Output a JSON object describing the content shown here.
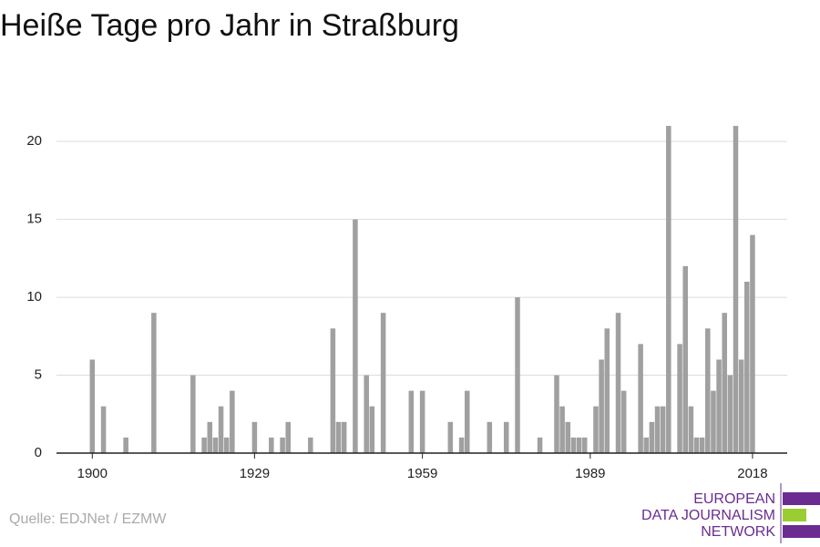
{
  "chart_data": {
    "type": "bar",
    "title": "Heiße Tage pro Jahr in Straßburg",
    "source": "Quelle: EDJNet / EZMW",
    "logo": [
      "EUROPEAN",
      "DATA JOURNALISM",
      "NETWORK"
    ],
    "color": "#a0a0a0",
    "x": [
      1900,
      1902,
      1906,
      1911,
      1918,
      1920,
      1921,
      1922,
      1923,
      1924,
      1925,
      1929,
      1932,
      1934,
      1935,
      1939,
      1943,
      1944,
      1945,
      1947,
      1949,
      1950,
      1952,
      1957,
      1959,
      1964,
      1966,
      1967,
      1971,
      1974,
      1976,
      1980,
      1983,
      1984,
      1985,
      1986,
      1987,
      1988,
      1990,
      1991,
      1992,
      1994,
      1995,
      1998,
      1999,
      2000,
      2001,
      2002,
      2003,
      2005,
      2006,
      2007,
      2008,
      2009,
      2010,
      2011,
      2012,
      2013,
      2014,
      2015,
      2016,
      2017,
      2018
    ],
    "values": [
      6,
      3,
      1,
      9,
      5,
      1,
      2,
      1,
      3,
      1,
      4,
      2,
      1,
      1,
      2,
      1,
      8,
      2,
      2,
      15,
      5,
      3,
      9,
      4,
      4,
      2,
      1,
      4,
      2,
      2,
      10,
      1,
      5,
      3,
      2,
      1,
      1,
      1,
      3,
      6,
      8,
      9,
      4,
      7,
      1,
      2,
      3,
      3,
      21,
      7,
      12,
      3,
      1,
      1,
      8,
      4,
      6,
      9,
      5,
      21,
      6,
      11,
      14
    ],
    "xlim": [
      1893.6,
      2024.2
    ],
    "xticks": [
      1900,
      1929,
      1959,
      1989,
      2018
    ],
    "ylim": [
      0,
      22
    ],
    "yticks": [
      0,
      5,
      10,
      15,
      20
    ],
    "grid": true
  }
}
